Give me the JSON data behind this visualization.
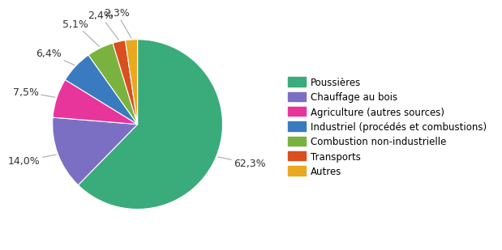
{
  "labels": [
    "Poussières",
    "Chauffage au bois",
    "Agriculture (autres sources)",
    "Industriel (procédés et combustions)",
    "Combustion non-industrielle",
    "Transports",
    "Autres"
  ],
  "values": [
    62.3,
    14.0,
    7.5,
    6.4,
    5.1,
    2.4,
    2.3
  ],
  "colors": [
    "#3aab7a",
    "#7b6fc4",
    "#e8359b",
    "#3a7abf",
    "#7ab240",
    "#d94f1e",
    "#e8a920"
  ],
  "autopct_labels": [
    "62,3%",
    "14,0%",
    "7,5%",
    "6,4%",
    "5,1%",
    "2,4%",
    "2,3%"
  ],
  "background_color": "#ffffff",
  "fontsize": 9,
  "legend_fontsize": 8.5
}
